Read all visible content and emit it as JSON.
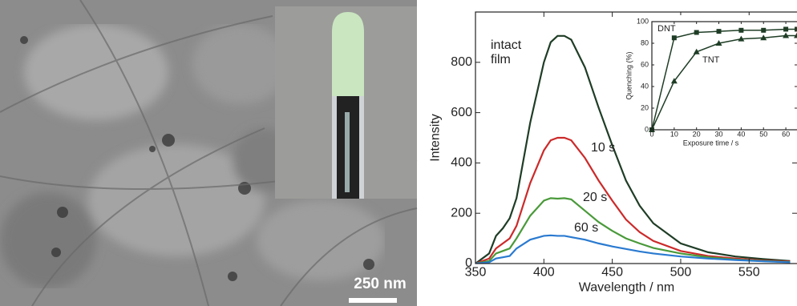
{
  "micrograph": {
    "scale_bar": "250 nm"
  },
  "chart_data": [
    {
      "type": "line",
      "xlabel": "Wavelength / nm",
      "ylabel": "Intensity",
      "x": [
        350,
        360,
        365,
        370,
        375,
        380,
        390,
        400,
        405,
        410,
        415,
        420,
        430,
        440,
        450,
        460,
        470,
        480,
        500,
        520,
        540,
        560,
        580
      ],
      "series": [
        {
          "name": "intact film",
          "color": "#1f3d26",
          "values": [
            0,
            40,
            110,
            140,
            180,
            260,
            560,
            800,
            880,
            905,
            905,
            890,
            780,
            620,
            470,
            330,
            230,
            160,
            80,
            45,
            28,
            18,
            10
          ]
        },
        {
          "name": "10 s",
          "color": "#cc2a2a",
          "values": [
            0,
            20,
            60,
            80,
            100,
            150,
            320,
            450,
            490,
            500,
            500,
            490,
            420,
            330,
            250,
            175,
            125,
            90,
            50,
            30,
            20,
            12,
            8
          ]
        },
        {
          "name": "20 s",
          "color": "#4a9a3a",
          "values": [
            0,
            10,
            40,
            50,
            60,
            100,
            190,
            250,
            260,
            258,
            260,
            255,
            210,
            165,
            130,
            100,
            80,
            62,
            40,
            25,
            16,
            10,
            6
          ]
        },
        {
          "name": "60 s",
          "color": "#2a7ad0",
          "values": [
            0,
            5,
            20,
            25,
            30,
            60,
            95,
            110,
            112,
            110,
            110,
            105,
            95,
            80,
            68,
            58,
            48,
            40,
            28,
            20,
            14,
            9,
            5
          ]
        }
      ],
      "xlim": [
        350,
        585
      ],
      "ylim": [
        0,
        1000
      ],
      "xticks": [
        350,
        400,
        450,
        500,
        550
      ],
      "yticks": [
        0,
        200,
        400,
        600,
        800
      ]
    },
    {
      "type": "line",
      "xlabel": "Exposure time / s",
      "ylabel": "Quenching (%)",
      "x": [
        0,
        10,
        20,
        30,
        40,
        50,
        60,
        65
      ],
      "series": [
        {
          "name": "DNT",
          "color": "#1f3d26",
          "marker": "square",
          "values": [
            0,
            85,
            90,
            91,
            92,
            92,
            93,
            93
          ]
        },
        {
          "name": "TNT",
          "color": "#1f3d26",
          "marker": "triangle",
          "values": [
            0,
            45,
            72,
            80,
            84,
            85,
            87,
            87
          ]
        }
      ],
      "xlim": [
        0,
        65
      ],
      "ylim": [
        0,
        100
      ],
      "xticks": [
        0,
        10,
        20,
        30,
        40,
        50,
        60
      ],
      "yticks": [
        0,
        20,
        40,
        60,
        80,
        100
      ]
    }
  ]
}
